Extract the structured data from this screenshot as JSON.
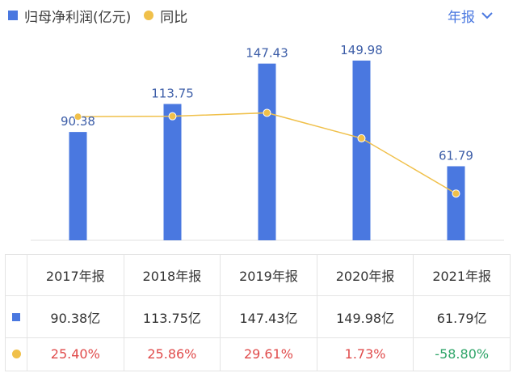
{
  "legend": {
    "bar_label": "归母净利润(亿元)",
    "line_label": "同比"
  },
  "period_selector": {
    "label": "年报",
    "icon": "chevron-down-icon"
  },
  "colors": {
    "bar": "#4a78e0",
    "line": "#f0c04a",
    "positive": "#e04b4b",
    "negative": "#2fa569"
  },
  "chart_data": {
    "type": "bar",
    "title": "",
    "xlabel": "",
    "ylabel": "",
    "categories": [
      "2017年报",
      "2018年报",
      "2019年报",
      "2020年报",
      "2021年报"
    ],
    "series": [
      {
        "name": "归母净利润(亿元)",
        "type": "bar",
        "values": [
          90.38,
          113.75,
          147.43,
          149.98,
          61.79
        ],
        "labels": [
          "90.38",
          "113.75",
          "147.43",
          "149.98",
          "61.79"
        ]
      },
      {
        "name": "同比",
        "type": "line",
        "values": [
          25.4,
          25.86,
          29.61,
          1.73,
          -58.8
        ],
        "unit": "%"
      }
    ],
    "ylim": [
      0,
      160
    ],
    "ylim_line": [
      -110,
      100
    ]
  },
  "table": {
    "headers": [
      "2017年报",
      "2018年报",
      "2019年报",
      "2020年报",
      "2021年报"
    ],
    "rows": [
      {
        "marker": "bar",
        "cells": [
          "90.38亿",
          "113.75亿",
          "147.43亿",
          "149.98亿",
          "61.79亿"
        ]
      },
      {
        "marker": "line",
        "cells": [
          "25.40%",
          "25.86%",
          "29.61%",
          "1.73%",
          "-58.80%"
        ]
      }
    ]
  }
}
